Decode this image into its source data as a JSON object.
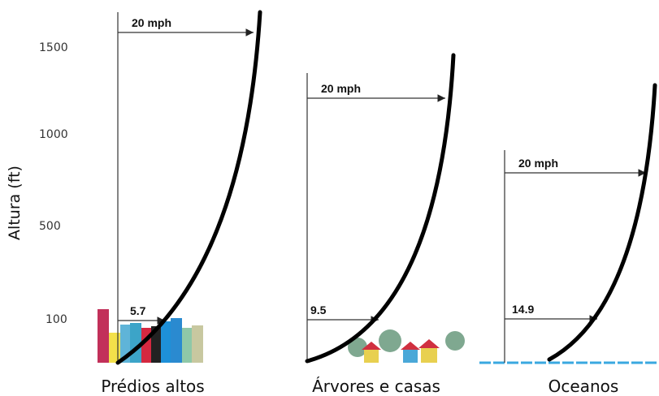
{
  "y_axis": {
    "label": "Altura (ft)",
    "ticks": [
      "1500",
      "1000",
      "500",
      "100"
    ]
  },
  "panels": [
    {
      "label": "Prédios altos",
      "top_speed": "20 mph",
      "bottom_speed": "5.7"
    },
    {
      "label": "Árvores e casas",
      "top_speed": "20 mph",
      "bottom_speed": "9.5"
    },
    {
      "label": "Oceanos",
      "top_speed": "20 mph",
      "bottom_speed": "14.9"
    }
  ]
}
